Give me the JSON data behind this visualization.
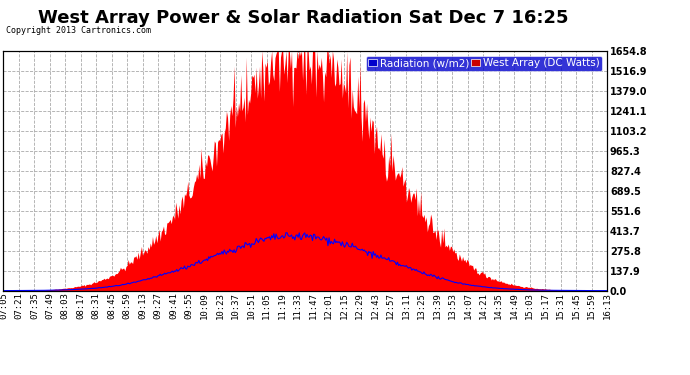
{
  "title": "West Array Power & Solar Radiation Sat Dec 7 16:25",
  "copyright": "Copyright 2013 Cartronics.com",
  "legend_radiation": "Radiation (w/m2)",
  "legend_west": "West Array (DC Watts)",
  "yticks": [
    0.0,
    137.9,
    275.8,
    413.7,
    551.6,
    689.5,
    827.4,
    965.3,
    1103.2,
    1241.1,
    1379.0,
    1516.9,
    1654.8
  ],
  "ymax": 1654.8,
  "plot_bg_color": "#ffffff",
  "outer_bg": "#ffffff",
  "grid_color": "#aaaaaa",
  "red_fill_color": "#ff0000",
  "blue_line_color": "#0000ff",
  "title_color": "#000000",
  "tick_label_color": "#000000",
  "x_labels": [
    "07:05",
    "07:21",
    "07:35",
    "07:49",
    "08:03",
    "08:17",
    "08:31",
    "08:45",
    "08:59",
    "09:13",
    "09:27",
    "09:41",
    "09:55",
    "10:09",
    "10:23",
    "10:37",
    "10:51",
    "11:05",
    "11:19",
    "11:33",
    "11:47",
    "12:01",
    "12:15",
    "12:29",
    "12:43",
    "12:57",
    "13:11",
    "13:25",
    "13:39",
    "13:53",
    "14:07",
    "14:21",
    "14:35",
    "14:49",
    "15:03",
    "15:17",
    "15:31",
    "15:45",
    "15:59",
    "16:13"
  ],
  "title_fontsize": 13,
  "tick_fontsize": 6.5,
  "legend_fontsize": 7.5
}
